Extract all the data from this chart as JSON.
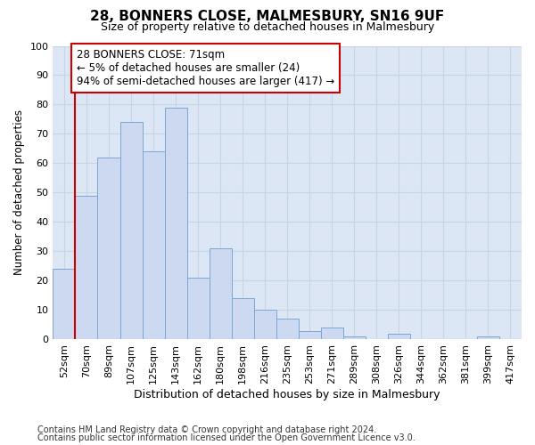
{
  "title": "28, BONNERS CLOSE, MALMESBURY, SN16 9UF",
  "subtitle": "Size of property relative to detached houses in Malmesbury",
  "xlabel": "Distribution of detached houses by size in Malmesbury",
  "ylabel": "Number of detached properties",
  "categories": [
    "52sqm",
    "70sqm",
    "89sqm",
    "107sqm",
    "125sqm",
    "143sqm",
    "162sqm",
    "180sqm",
    "198sqm",
    "216sqm",
    "235sqm",
    "253sqm",
    "271sqm",
    "289sqm",
    "308sqm",
    "326sqm",
    "344sqm",
    "362sqm",
    "381sqm",
    "399sqm",
    "417sqm"
  ],
  "values": [
    24,
    49,
    62,
    74,
    64,
    79,
    21,
    31,
    14,
    10,
    7,
    3,
    4,
    1,
    0,
    2,
    0,
    0,
    0,
    1,
    0
  ],
  "bar_color": "#ccd9f0",
  "bar_edge_color": "#7ba7d4",
  "annotation_text_line1": "28 BONNERS CLOSE: 71sqm",
  "annotation_text_line2": "← 5% of detached houses are smaller (24)",
  "annotation_text_line3": "94% of semi-detached houses are larger (417) →",
  "annotation_box_facecolor": "#ffffff",
  "annotation_box_edgecolor": "#cc0000",
  "vline_color": "#cc0000",
  "grid_color": "#c8d4e8",
  "plot_bg_color": "#dce6f5",
  "fig_bg_color": "#ffffff",
  "footnote1": "Contains HM Land Registry data © Crown copyright and database right 2024.",
  "footnote2": "Contains public sector information licensed under the Open Government Licence v3.0.",
  "ylim": [
    0,
    100
  ],
  "yticks": [
    0,
    10,
    20,
    30,
    40,
    50,
    60,
    70,
    80,
    90,
    100
  ]
}
